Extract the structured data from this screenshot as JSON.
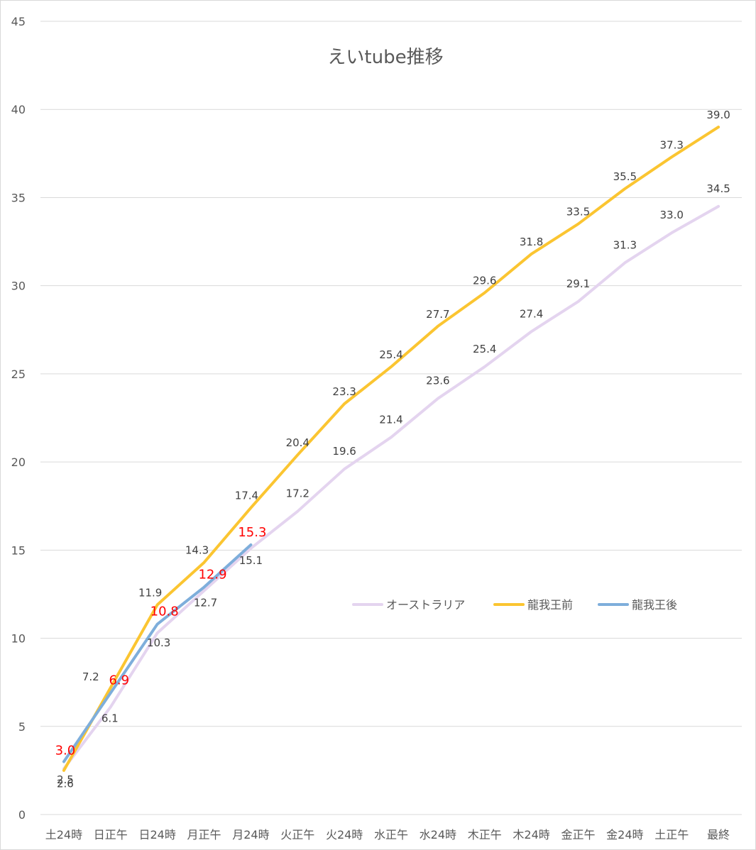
{
  "chart_data": {
    "type": "line",
    "title": "えいtube推移",
    "xlabel": "",
    "ylabel": "",
    "ylim": [
      0,
      45
    ],
    "yticks": [
      0,
      5,
      10,
      15,
      20,
      25,
      30,
      35,
      40,
      45
    ],
    "grid": true,
    "legend_position": "right-middle",
    "categories": [
      "土24時",
      "日正午",
      "日24時",
      "月正午",
      "月24時",
      "火正午",
      "火24時",
      "水正午",
      "水24時",
      "木正午",
      "木24時",
      "金正午",
      "金24時",
      "土正午",
      "最終"
    ],
    "series": [
      {
        "name": "オーストラリア",
        "color": "#e4d4ef",
        "values": [
          2.6,
          6.1,
          10.3,
          12.7,
          15.1,
          17.2,
          19.6,
          21.4,
          23.6,
          25.4,
          27.4,
          29.1,
          31.3,
          33.0,
          34.5
        ],
        "labels": [
          "2.6",
          "6.1",
          "10.3",
          "12.7",
          "15.1",
          "17.2",
          "19.6",
          "21.4",
          "23.6",
          "25.4",
          "27.4",
          "29.1",
          "31.3",
          "33.0",
          "34.5"
        ]
      },
      {
        "name": "龍我王前",
        "color": "#fbc531",
        "values": [
          2.5,
          7.2,
          11.9,
          14.3,
          17.4,
          20.4,
          23.3,
          25.4,
          27.7,
          29.6,
          31.8,
          33.5,
          35.5,
          37.3,
          39.0
        ],
        "labels": [
          "2.5",
          "7.2",
          "11.9",
          "14.3",
          "17.4",
          "20.4",
          "23.3",
          "25.4",
          "27.7",
          "29.6",
          "31.8",
          "33.5",
          "35.5",
          "37.3",
          "39.0"
        ]
      },
      {
        "name": "龍我王後",
        "color": "#7eaedb",
        "label_color": "#ff0000",
        "values": [
          3.0,
          6.9,
          10.8,
          12.9,
          15.3,
          null,
          null,
          null,
          null,
          null,
          null,
          null,
          null,
          null,
          null
        ],
        "labels": [
          "3.0",
          "6.9",
          "10.8",
          "12.9",
          "15.3"
        ]
      }
    ]
  }
}
